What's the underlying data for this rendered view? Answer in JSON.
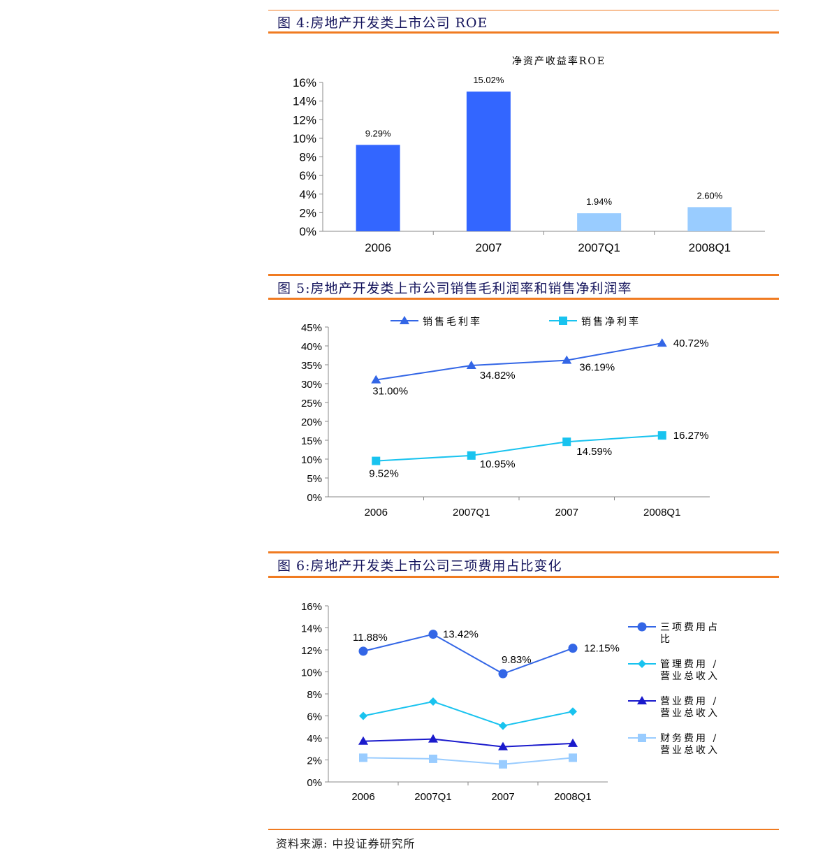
{
  "figures": [
    {
      "title": "图 4:房地产开发类上市公司 ROE"
    },
    {
      "title": "图 5:房地产开发类上市公司销售毛利润率和销售净利润率"
    },
    {
      "title": "图 6:房地产开发类上市公司三项费用占比变化"
    }
  ],
  "source": "资料来源: 中投证券研究所",
  "chart_data": [
    {
      "type": "bar",
      "title": "净资产收益率ROE",
      "categories": [
        "2006",
        "2007",
        "2007Q1",
        "2008Q1"
      ],
      "values": [
        9.29,
        15.02,
        1.94,
        2.6
      ],
      "value_labels": [
        "9.29%",
        "15.02%",
        "1.94%",
        "2.60%"
      ],
      "bar_colors": [
        "#3366ff",
        "#3366ff",
        "#99ccff",
        "#99ccff"
      ],
      "y_ticks": [
        "0%",
        "2%",
        "4%",
        "6%",
        "8%",
        "10%",
        "12%",
        "14%",
        "16%"
      ],
      "ylim": [
        0,
        16
      ],
      "grid": false
    },
    {
      "type": "line",
      "categories": [
        "2006",
        "2007Q1",
        "2007",
        "2008Q1"
      ],
      "y_ticks": [
        "0%",
        "5%",
        "10%",
        "15%",
        "20%",
        "25%",
        "30%",
        "35%",
        "40%",
        "45%"
      ],
      "ylim": [
        0,
        45
      ],
      "legend_position": "top",
      "grid": false,
      "series": [
        {
          "name": "销售毛利率",
          "values": [
            31.0,
            34.82,
            36.19,
            40.72
          ],
          "labels": [
            "31.00%",
            "34.82%",
            "36.19%",
            "40.72%"
          ],
          "color": "#3366e6",
          "marker": "triangle"
        },
        {
          "name": "销售净利率",
          "values": [
            9.52,
            10.95,
            14.59,
            16.27
          ],
          "labels": [
            "9.52%",
            "10.95%",
            "14.59%",
            "16.27%"
          ],
          "color": "#19c3ef",
          "marker": "square"
        }
      ]
    },
    {
      "type": "line",
      "categories": [
        "2006",
        "2007Q1",
        "2007",
        "2008Q1"
      ],
      "y_ticks": [
        "0%",
        "2%",
        "4%",
        "6%",
        "8%",
        "10%",
        "12%",
        "14%",
        "16%"
      ],
      "ylim": [
        0,
        16
      ],
      "legend_position": "right",
      "grid": false,
      "series": [
        {
          "name": "三项费用占比",
          "values": [
            11.88,
            13.42,
            9.83,
            12.15
          ],
          "labels": [
            "11.88%",
            "13.42%",
            "9.83%",
            "12.15%"
          ],
          "color": "#3366e6",
          "marker": "circle"
        },
        {
          "name": "管理费用/营业总收入",
          "values": [
            6.0,
            7.3,
            5.1,
            6.4
          ],
          "labels": [],
          "color": "#19c3ef",
          "marker": "diamond"
        },
        {
          "name": "营业费用/营业总收入",
          "values": [
            3.7,
            3.9,
            3.2,
            3.5
          ],
          "labels": [],
          "color": "#1a1acc",
          "marker": "triangle"
        },
        {
          "name": "财务费用/营业总收入",
          "values": [
            2.2,
            2.1,
            1.6,
            2.2
          ],
          "labels": [],
          "color": "#99ccff",
          "marker": "square"
        }
      ]
    }
  ]
}
